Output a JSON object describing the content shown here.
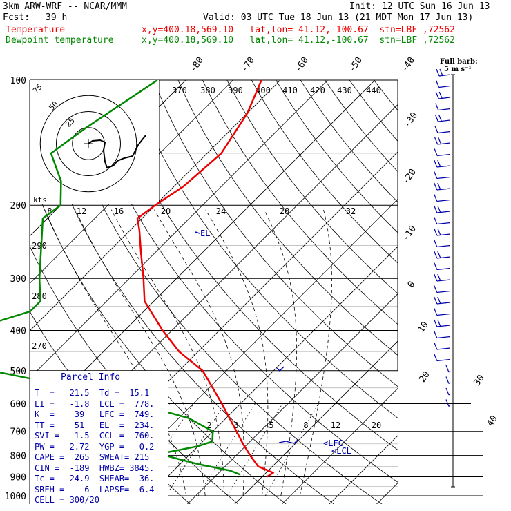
{
  "header": {
    "model": "3km ARW-WRF -- NCAR/MMM",
    "init": "Init: 12 UTC Sun 16 Jun 13",
    "fcst_label": "Fcst:",
    "fcst_value": "39 h",
    "valid": "Valid: 03 UTC Tue 18 Jun 13 (21 MDT Mon 17 Jun 13)",
    "temp_name": "Temperature",
    "dew_name": "Dewpoint temperature",
    "temp_loc": "x,y=400.18,569.10   lat,lon= 41.12,-100.67  stn=LBF ,72562",
    "dew_loc": "x,y=400.18,569.10   lat,lon= 41.12,-100.67  stn=LBF ,72562"
  },
  "wind_key": {
    "title": "Full barb:",
    "value": "5 m s⁻¹"
  },
  "hodograph": {
    "units": "kts",
    "ring_labels": [
      "25",
      "50",
      "75"
    ]
  },
  "parcel_info": {
    "title": "Parcel Info",
    "rows": [
      "T  =   21.5  Td =  15.1",
      "LI =   -1.8  LCL =  778.",
      "K  =    39   LFC =  749.",
      "TT =    51   EL  =  234.",
      "SVI =  -1.5  CCL =  760.",
      "PW =   2.72  YGP =   0.2",
      "CAPE =  265  SWEAT= 215",
      "CIN =  -189  HWBZ= 3845.",
      "Tc =   24.9  SHEAR=  36.",
      "SREH =    6  LAPSE=  6.4",
      "CELL = 300/20"
    ]
  },
  "level_labels": {
    "el": "EL",
    "lfc": "LFC",
    "lcl": "LCL"
  },
  "colors": {
    "temperature": "#ee0000",
    "dewpoint": "#008800",
    "annotation": "#0000aa",
    "grid": "#000000"
  },
  "chart_data": {
    "type": "line",
    "diagram": "skew-T log-p",
    "y_ticks": [
      "100",
      "200",
      "300",
      "400",
      "500",
      "600",
      "700",
      "800",
      "900",
      "1000"
    ],
    "isotherm_labels": [
      "-80",
      "-70",
      "-60",
      "-50",
      "-40",
      "-30",
      "-20",
      "-10",
      "0",
      "10",
      "20",
      "30",
      "40"
    ],
    "theta_labels": [
      "370",
      "380",
      "390",
      "400",
      "410",
      "420",
      "430",
      "440",
      "290",
      "280",
      "270"
    ],
    "mixing_ratio_labels": [
      "2",
      "3",
      "5",
      "8",
      "12",
      "20"
    ],
    "thetae_labels": [
      "8",
      "12",
      "16",
      "20",
      "24",
      "28",
      "32"
    ],
    "ylim": [
      1000,
      100
    ],
    "series": [
      {
        "name": "Temperature",
        "color": "#ee0000",
        "points": [
          [
            100,
            -64
          ],
          [
            120,
            -60
          ],
          [
            150,
            -57
          ],
          [
            180,
            -58
          ],
          [
            200,
            -60
          ],
          [
            215,
            -61
          ],
          [
            230,
            -58
          ],
          [
            260,
            -53
          ],
          [
            300,
            -47
          ],
          [
            340,
            -42
          ],
          [
            400,
            -32
          ],
          [
            450,
            -24
          ],
          [
            500,
            -15
          ],
          [
            600,
            -4
          ],
          [
            700,
            5
          ],
          [
            750,
            9
          ],
          [
            800,
            13
          ],
          [
            850,
            17
          ],
          [
            880,
            21.5
          ],
          [
            900,
            21
          ]
        ]
      },
      {
        "name": "Dewpoint temperature",
        "color": "#008800",
        "points": [
          [
            100,
            -86
          ],
          [
            130,
            -91
          ],
          [
            150,
            -93
          ],
          [
            175,
            -85
          ],
          [
            200,
            -80
          ],
          [
            215,
            -81
          ],
          [
            300,
            -69
          ],
          [
            340,
            -64
          ],
          [
            360,
            -64
          ],
          [
            400,
            -73
          ],
          [
            430,
            -85
          ],
          [
            480,
            -69
          ],
          [
            550,
            -38
          ],
          [
            600,
            -22
          ],
          [
            650,
            -8
          ],
          [
            700,
            0
          ],
          [
            740,
            2
          ],
          [
            760,
            0
          ],
          [
            790,
            -6
          ],
          [
            800,
            -5
          ],
          [
            840,
            4
          ],
          [
            870,
            12
          ],
          [
            890,
            15
          ]
        ]
      }
    ]
  }
}
